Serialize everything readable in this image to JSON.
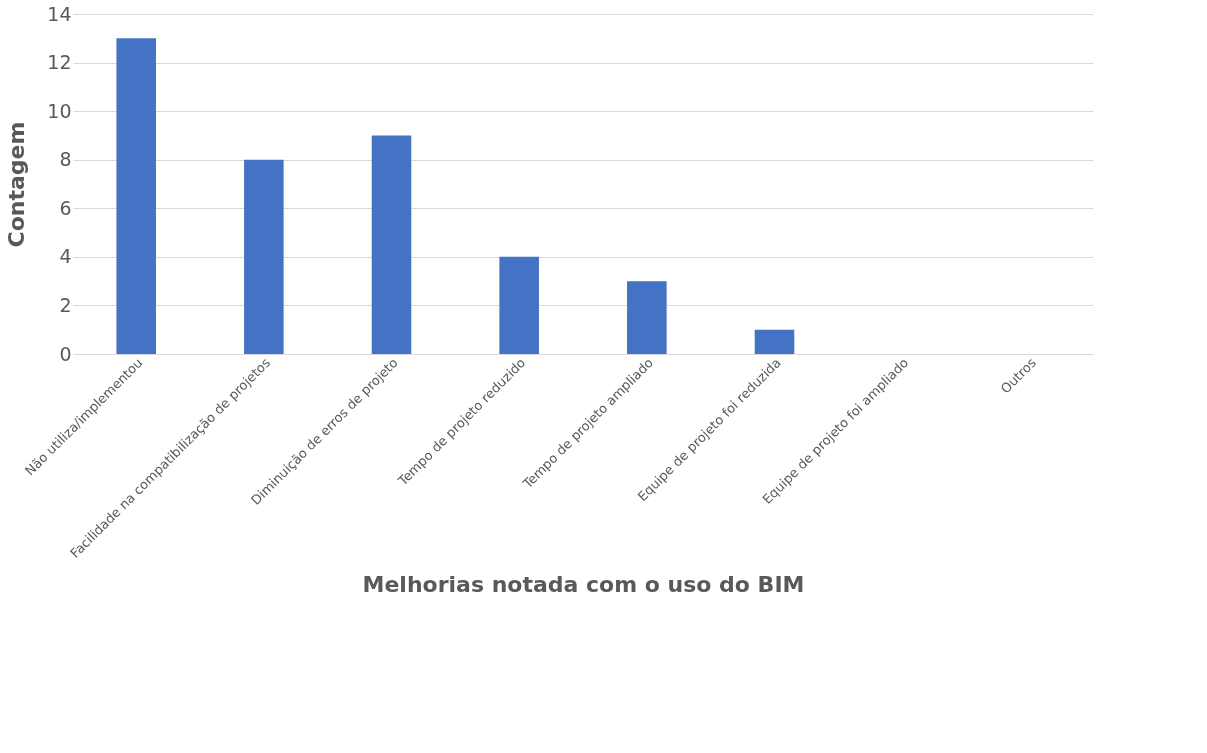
{
  "chart_data": {
    "type": "bar",
    "xlabel": "Melhorias notada com o uso do BIM",
    "ylabel": "Contagem",
    "categories": [
      "Não utiliza/implementou",
      "Facilidade na compatibilização de projetos",
      "Diminuição de erros de projeto",
      "Tempo de projeto reduzido",
      "Tempo de projeto ampliado",
      "Equipe de projeto foi reduzida",
      "Equipe de projeto foi ampliado",
      "Outros"
    ],
    "values": [
      13,
      8,
      9,
      4,
      3,
      1,
      0,
      0
    ],
    "color": "#4472c4",
    "ylim": [
      0,
      14
    ],
    "yticks": [
      0,
      2,
      4,
      6,
      8,
      10,
      12,
      14
    ],
    "grid": "y"
  }
}
